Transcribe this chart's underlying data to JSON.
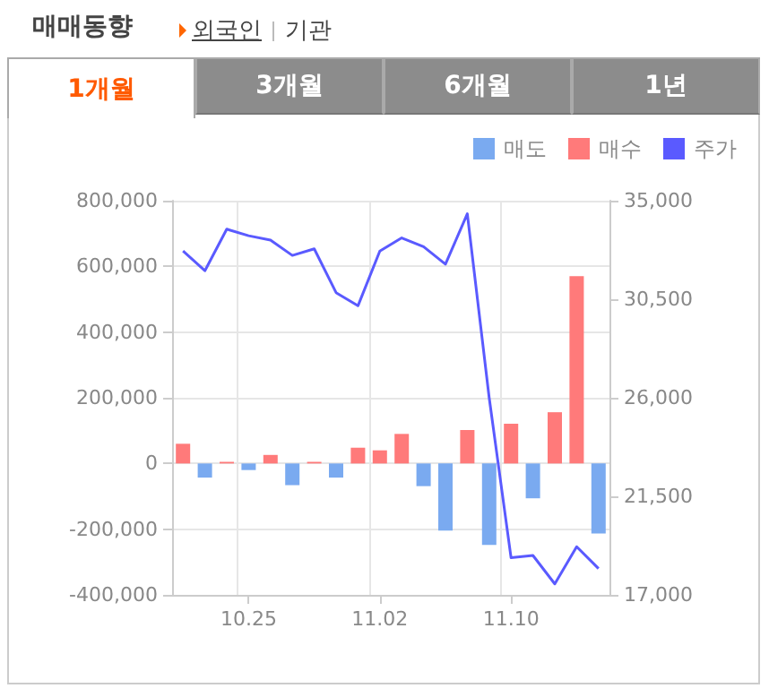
{
  "chart_data": {
    "type": "bar",
    "title": "매매동향",
    "annotations": [
      "외국인",
      "기관",
      "1개월",
      "3개월",
      "6개월",
      "1년"
    ],
    "categories": [
      null,
      null,
      null,
      "10.25",
      null,
      null,
      null,
      null,
      null,
      "11.02",
      null,
      null,
      null,
      null,
      null,
      "11.10",
      null,
      null,
      null,
      null
    ],
    "series": [
      {
        "name": "매도",
        "color": "#7aaaf0",
        "values": [
          null,
          -43000,
          null,
          -20000,
          null,
          -66000,
          null,
          -43000,
          null,
          null,
          null,
          -69000,
          -204000,
          null,
          -248000,
          null,
          -106000,
          null,
          null,
          -213000
        ]
      },
      {
        "name": "매수",
        "color": "#ff7a7a",
        "values": [
          60000,
          null,
          5000,
          null,
          26000,
          null,
          5000,
          null,
          48000,
          40000,
          90000,
          null,
          null,
          102000,
          null,
          121000,
          null,
          156000,
          570000,
          null
        ]
      },
      {
        "name": "주가",
        "color": "#5a5aff",
        "type": "line",
        "axis": "y2",
        "values": [
          32700,
          31800,
          33700,
          33400,
          33200,
          32500,
          32800,
          30800,
          30200,
          32700,
          33300,
          32900,
          32100,
          34400,
          26000,
          18700,
          18800,
          17500,
          19200,
          18200
        ]
      }
    ],
    "stacked": true,
    "ylim": [
      -400000,
      800000
    ],
    "yticks": [
      {
        "value": -400000,
        "label": "-400,000"
      },
      {
        "value": -200000,
        "label": "-200,000"
      },
      0,
      {
        "value": 200000,
        "label": "200,000"
      },
      {
        "value": 400000,
        "label": "400,000"
      },
      {
        "value": 600000,
        "label": "600,000"
      },
      {
        "value": 800000,
        "label": "800,000"
      }
    ],
    "y2lim": [
      17000,
      35000
    ],
    "y2ticks": [
      {
        "value": 17000,
        "label": "17,000"
      },
      {
        "value": 21500,
        "label": "21,500"
      },
      {
        "value": 26000,
        "label": "26,000"
      },
      {
        "value": 30500,
        "label": "30,500"
      },
      {
        "value": 35000,
        "label": "35,000"
      }
    ],
    "grid": true,
    "legend": "top right",
    "marker": "none"
  }
}
